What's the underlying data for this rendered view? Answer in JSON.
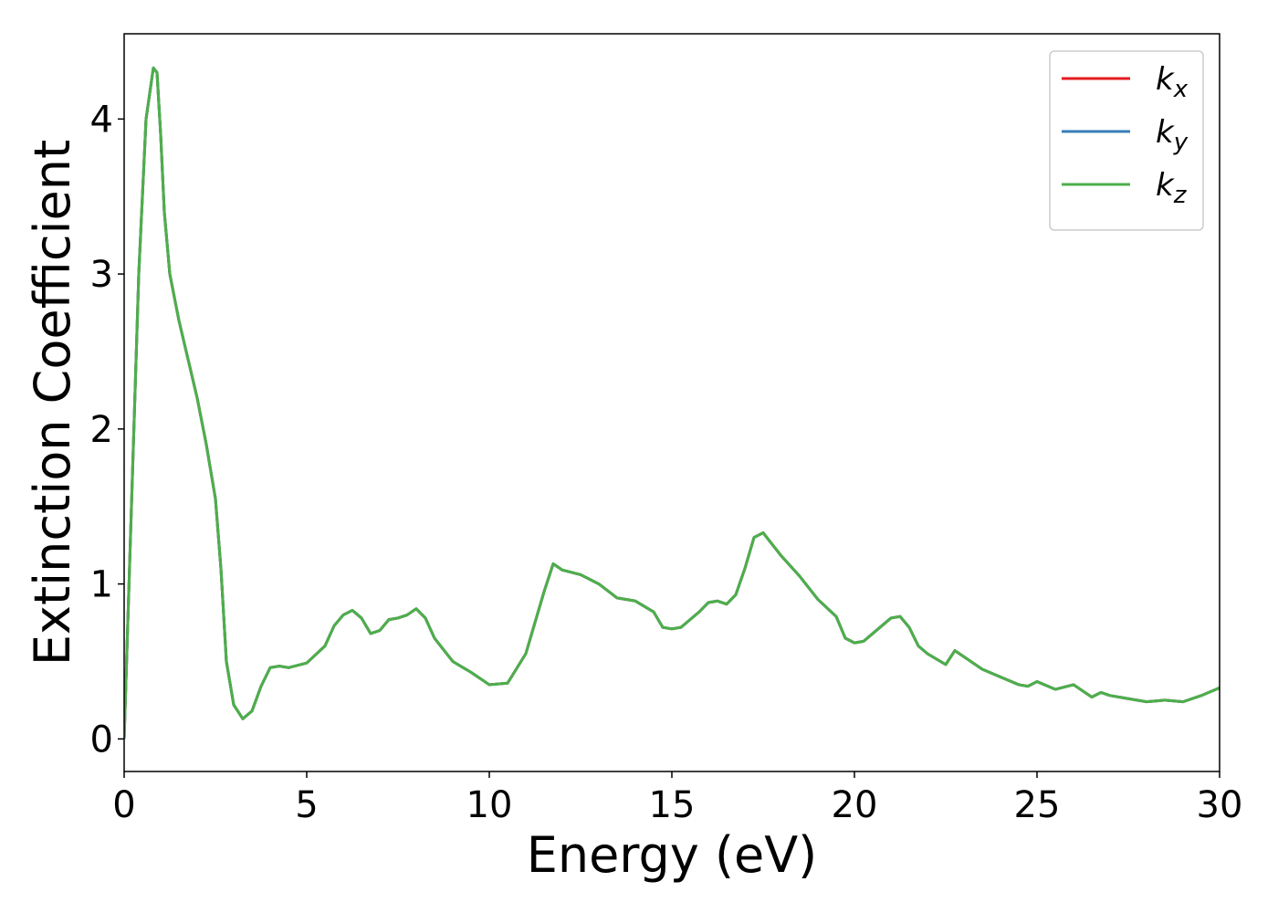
{
  "chart_data": {
    "type": "line",
    "xlabel": "Energy (eV)",
    "ylabel": "Extinction Coefficient",
    "x": [
      0,
      0.2,
      0.4,
      0.6,
      0.8,
      0.9,
      1.0,
      1.1,
      1.25,
      1.5,
      1.75,
      2.0,
      2.25,
      2.5,
      2.65,
      2.8,
      3.0,
      3.25,
      3.5,
      3.75,
      4.0,
      4.25,
      4.5,
      5.0,
      5.5,
      5.75,
      6.0,
      6.25,
      6.5,
      6.75,
      7.0,
      7.25,
      7.5,
      7.75,
      8.0,
      8.25,
      8.5,
      9.0,
      9.5,
      10.0,
      10.5,
      11.0,
      11.5,
      11.75,
      12.0,
      12.5,
      13.0,
      13.5,
      14.0,
      14.5,
      14.75,
      15.0,
      15.25,
      15.75,
      16.0,
      16.25,
      16.5,
      16.75,
      17.0,
      17.25,
      17.5,
      18.0,
      18.5,
      19.0,
      19.5,
      19.75,
      20.0,
      20.25,
      20.5,
      21.0,
      21.25,
      21.5,
      21.75,
      22.0,
      22.5,
      22.75,
      23.0,
      23.5,
      24.0,
      24.5,
      24.75,
      25.0,
      25.5,
      26.0,
      26.5,
      26.75,
      27.0,
      27.5,
      28.0,
      28.5,
      29.0,
      29.5,
      30.0
    ],
    "series": [
      {
        "name": "kx",
        "color": "#e41a1c",
        "values": [
          0,
          1.5,
          3.0,
          4.0,
          4.33,
          4.3,
          3.9,
          3.4,
          3.0,
          2.7,
          2.45,
          2.2,
          1.9,
          1.55,
          1.1,
          0.5,
          0.22,
          0.13,
          0.18,
          0.34,
          0.46,
          0.47,
          0.46,
          0.49,
          0.6,
          0.73,
          0.8,
          0.83,
          0.78,
          0.68,
          0.7,
          0.77,
          0.78,
          0.8,
          0.84,
          0.78,
          0.65,
          0.5,
          0.43,
          0.35,
          0.36,
          0.55,
          0.95,
          1.13,
          1.09,
          1.06,
          1.0,
          0.91,
          0.89,
          0.82,
          0.72,
          0.71,
          0.72,
          0.82,
          0.88,
          0.89,
          0.87,
          0.93,
          1.1,
          1.3,
          1.33,
          1.18,
          1.05,
          0.9,
          0.79,
          0.65,
          0.62,
          0.63,
          0.68,
          0.78,
          0.79,
          0.72,
          0.6,
          0.55,
          0.48,
          0.57,
          0.53,
          0.45,
          0.4,
          0.35,
          0.34,
          0.37,
          0.32,
          0.35,
          0.27,
          0.3,
          0.28,
          0.26,
          0.24,
          0.25,
          0.24,
          0.28,
          0.33
        ]
      },
      {
        "name": "ky",
        "color": "#377eb8",
        "values": [
          0,
          1.5,
          3.0,
          4.0,
          4.33,
          4.3,
          3.9,
          3.4,
          3.0,
          2.7,
          2.45,
          2.2,
          1.9,
          1.55,
          1.1,
          0.5,
          0.22,
          0.13,
          0.18,
          0.34,
          0.46,
          0.47,
          0.46,
          0.49,
          0.6,
          0.73,
          0.8,
          0.83,
          0.78,
          0.68,
          0.7,
          0.77,
          0.78,
          0.8,
          0.84,
          0.78,
          0.65,
          0.5,
          0.43,
          0.35,
          0.36,
          0.55,
          0.95,
          1.13,
          1.09,
          1.06,
          1.0,
          0.91,
          0.89,
          0.82,
          0.72,
          0.71,
          0.72,
          0.82,
          0.88,
          0.89,
          0.87,
          0.93,
          1.1,
          1.3,
          1.33,
          1.18,
          1.05,
          0.9,
          0.79,
          0.65,
          0.62,
          0.63,
          0.68,
          0.78,
          0.79,
          0.72,
          0.6,
          0.55,
          0.48,
          0.57,
          0.53,
          0.45,
          0.4,
          0.35,
          0.34,
          0.37,
          0.32,
          0.35,
          0.27,
          0.3,
          0.28,
          0.26,
          0.24,
          0.25,
          0.24,
          0.28,
          0.33
        ]
      },
      {
        "name": "kz",
        "color": "#4daf4a",
        "values": [
          0,
          1.5,
          3.0,
          4.0,
          4.33,
          4.3,
          3.9,
          3.4,
          3.0,
          2.7,
          2.45,
          2.2,
          1.9,
          1.55,
          1.1,
          0.5,
          0.22,
          0.13,
          0.18,
          0.34,
          0.46,
          0.47,
          0.46,
          0.49,
          0.6,
          0.73,
          0.8,
          0.83,
          0.78,
          0.68,
          0.7,
          0.77,
          0.78,
          0.8,
          0.84,
          0.78,
          0.65,
          0.5,
          0.43,
          0.35,
          0.36,
          0.55,
          0.95,
          1.13,
          1.09,
          1.06,
          1.0,
          0.91,
          0.89,
          0.82,
          0.72,
          0.71,
          0.72,
          0.82,
          0.88,
          0.89,
          0.87,
          0.93,
          1.1,
          1.3,
          1.33,
          1.18,
          1.05,
          0.9,
          0.79,
          0.65,
          0.62,
          0.63,
          0.68,
          0.78,
          0.79,
          0.72,
          0.6,
          0.55,
          0.48,
          0.57,
          0.53,
          0.45,
          0.4,
          0.35,
          0.34,
          0.37,
          0.32,
          0.35,
          0.27,
          0.3,
          0.28,
          0.26,
          0.24,
          0.25,
          0.24,
          0.28,
          0.33
        ]
      }
    ],
    "xlim": [
      0,
      30
    ],
    "xticks": [
      0,
      5,
      10,
      15,
      20,
      25,
      30
    ],
    "ylim": [
      -0.21,
      4.55
    ],
    "yticks": [
      0,
      1,
      2,
      3,
      4
    ],
    "grid": false,
    "legend": "upper right"
  }
}
